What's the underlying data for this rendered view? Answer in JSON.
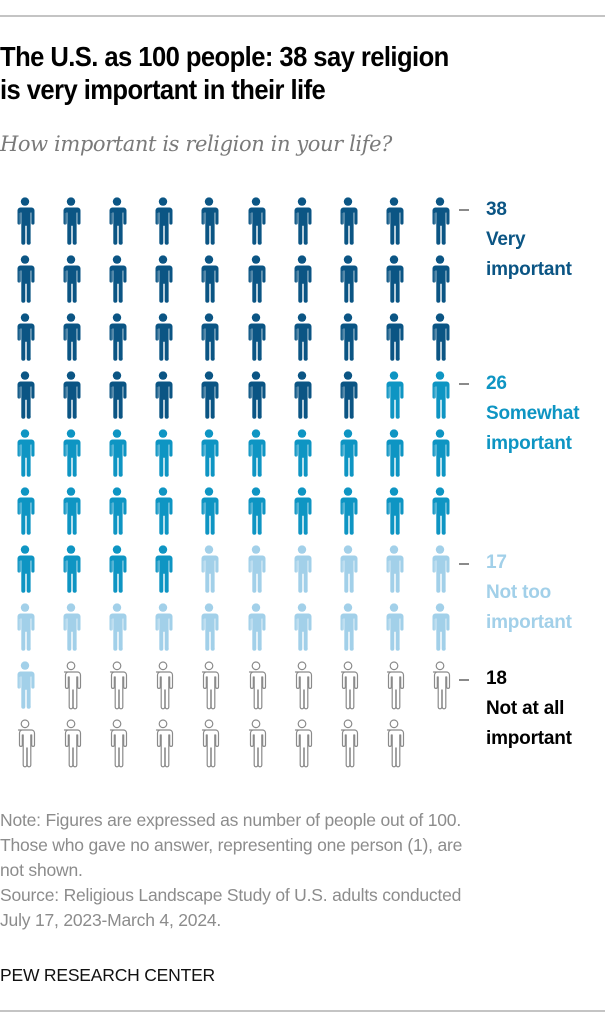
{
  "header": {
    "title_line1": "The U.S. as 100 people: 38 say religion",
    "title_line2": "is very important in their life",
    "subtitle": "How important is religion in your life?"
  },
  "colors": {
    "very": "#0b5584",
    "somewhat": "#0e95c3",
    "not_too": "#a2d0e9",
    "not_at_all_stroke": "#8a8a8a",
    "rule": "#c4c4c4"
  },
  "labels": [
    {
      "key": "very",
      "number": "38",
      "line1": "Very",
      "line2": "important",
      "color": "#0b5584"
    },
    {
      "key": "somewhat",
      "number": "26",
      "line1": "Somewhat",
      "line2": "important",
      "color": "#0e95c3"
    },
    {
      "key": "not_too",
      "number": "17",
      "line1": "Not too",
      "line2": "important",
      "color": "#a2d0e9"
    },
    {
      "key": "not_at_all",
      "number": "18",
      "line1": "Not at all",
      "line2": "important",
      "color": "#000000"
    }
  ],
  "icons": {
    "person": "person-icon"
  },
  "chart_data": {
    "type": "pictogram",
    "title": "The U.S. as 100 people: 38 say religion is very important in their life",
    "subtitle": "How important is religion in your life?",
    "unit": "people out of 100",
    "grid": {
      "columns": 10,
      "rows": 10
    },
    "categories": [
      "Very important",
      "Somewhat important",
      "Not too important",
      "Not at all important"
    ],
    "values": [
      38,
      26,
      17,
      18
    ],
    "not_shown": {
      "label": "No answer",
      "value": 1
    }
  },
  "footer": {
    "note_line1": "Note: Figures are expressed as number of people out of 100.",
    "note_line2": "Those who gave no answer, representing one person (1), are",
    "note_line3": "not shown.",
    "source_line1": "Source: Religious Landscape Study of U.S. adults conducted",
    "source_line2": "July 17, 2023-March 4, 2024.",
    "brand": "PEW RESEARCH CENTER"
  }
}
